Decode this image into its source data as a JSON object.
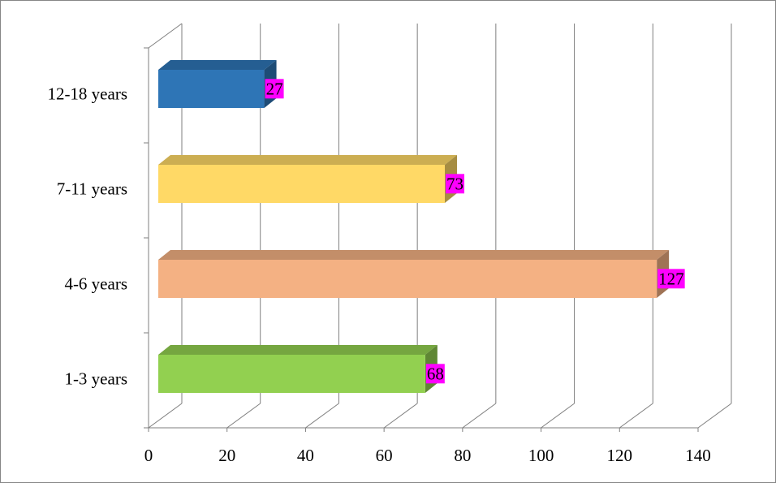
{
  "chart_data": {
    "type": "bar3d_horizontal",
    "categories": [
      "1-3 years",
      "4-6 years",
      "7-11 years",
      "12-18 years"
    ],
    "values": [
      68,
      127,
      73,
      27
    ],
    "colors": [
      "#92d050",
      "#f4b183",
      "#ffd966",
      "#2e75b6"
    ],
    "label_background": "#ff00ff",
    "xlim": [
      0,
      140
    ],
    "xticks": [
      0,
      20,
      40,
      60,
      80,
      100,
      120,
      140
    ],
    "grid": true
  }
}
